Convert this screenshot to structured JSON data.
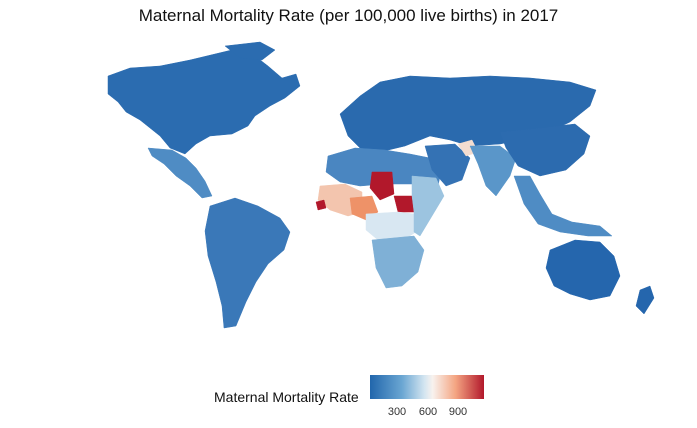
{
  "title": "Maternal Mortality Rate (per 100,000 live births) in 2017",
  "legend": {
    "title": "Maternal Mortality Rate",
    "ticks": [
      "300",
      "600",
      "900"
    ],
    "colors": [
      "#2166ac",
      "#6aa6d2",
      "#d5e6f1",
      "#f8f2ee",
      "#f4a582",
      "#b2182b"
    ]
  },
  "regions": [
    {
      "name": "Canada/USA",
      "color": "#2b6cb0"
    },
    {
      "name": "Mexico/Central America",
      "color": "#4f8cc4"
    },
    {
      "name": "South America",
      "color": "#3a78b8"
    },
    {
      "name": "Europe/Russia",
      "color": "#2a6aae"
    },
    {
      "name": "North Africa",
      "color": "#4a86c1"
    },
    {
      "name": "West Africa",
      "color": "#f3c5ae"
    },
    {
      "name": "Nigeria",
      "color": "#ee9268"
    },
    {
      "name": "Chad",
      "color": "#b2182b"
    },
    {
      "name": "South Sudan",
      "color": "#b2182b"
    },
    {
      "name": "Sierra Leone",
      "color": "#b2182b"
    },
    {
      "name": "Central Africa",
      "color": "#d8e7f2"
    },
    {
      "name": "East Africa",
      "color": "#9cc4e0"
    },
    {
      "name": "Southern Africa",
      "color": "#7fb0d6"
    },
    {
      "name": "Middle East",
      "color": "#3472b4"
    },
    {
      "name": "South Asia",
      "color": "#5a96c9"
    },
    {
      "name": "Afghanistan",
      "color": "#f4ddd0"
    },
    {
      "name": "East Asia",
      "color": "#2c6baf"
    },
    {
      "name": "Southeast Asia",
      "color": "#4f8cc4"
    },
    {
      "name": "Australia/NZ",
      "color": "#2566ad"
    }
  ]
}
